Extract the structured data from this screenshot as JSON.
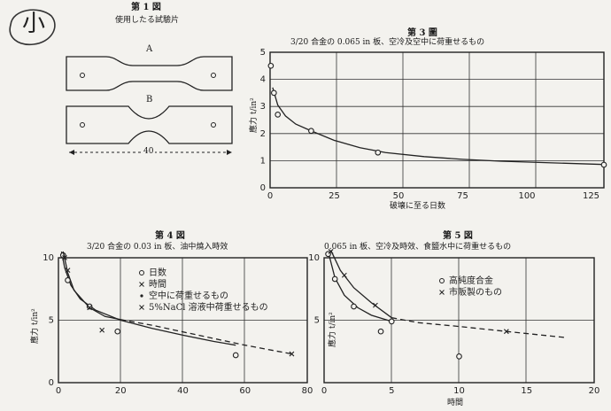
{
  "margin_mark": "小",
  "fig1": {
    "title": "第 1 図",
    "subtitle": "使用したる試驗片",
    "label_a": "A",
    "label_b": "B",
    "dim": "40"
  },
  "chart_data": [
    {
      "id": "fig3",
      "type": "scatter",
      "title": "第 3 圖",
      "subtitle": "3/20 合金の 0.065 in 板、空冷及空中に荷重せるもの",
      "xlabel": "破壊に至る日数",
      "ylabel": "應力 t/in²",
      "xlim": [
        0,
        130
      ],
      "ylim": [
        0,
        5
      ],
      "xticks": [
        "0",
        "25",
        "50",
        "75",
        "100",
        "125"
      ],
      "yticks": [
        "0",
        "1",
        "2",
        "3",
        "4",
        "5"
      ],
      "grid": true,
      "series": [
        {
          "marker": "circle",
          "points": [
            [
              0.3,
              4.5
            ],
            [
              1.5,
              3.5
            ],
            [
              3,
              2.7
            ],
            [
              16,
              2.1
            ],
            [
              42,
              1.3
            ],
            [
              130,
              0.85
            ]
          ],
          "curve": [
            [
              1.0,
              3.7
            ],
            [
              3,
              3.05
            ],
            [
              6,
              2.65
            ],
            [
              10,
              2.35
            ],
            [
              16,
              2.1
            ],
            [
              25,
              1.75
            ],
            [
              35,
              1.48
            ],
            [
              45,
              1.3
            ],
            [
              60,
              1.15
            ],
            [
              75,
              1.05
            ],
            [
              90,
              0.98
            ],
            [
              110,
              0.92
            ],
            [
              130,
              0.86
            ]
          ]
        }
      ]
    },
    {
      "id": "fig4",
      "type": "scatter",
      "title": "第 4 図",
      "subtitle": "3/20 合金の 0.03 in 板、油中燒入時效",
      "ylabel": "應力 t/in²",
      "xlim": [
        0,
        80
      ],
      "ylim": [
        0,
        10
      ],
      "xticks": [
        "0",
        "20",
        "40",
        "60",
        "80"
      ],
      "yticks": [
        "0",
        "5",
        "10"
      ],
      "grid": true,
      "legend": [
        "日数",
        "時間",
        "空中に荷重せるもの",
        "5%NaCl 溶液中荷重せるもの"
      ],
      "series": [
        {
          "name": "空中に荷重せるもの",
          "marker": "circle",
          "points": [
            [
              1.5,
              10.2
            ],
            [
              3,
              8.2
            ],
            [
              10,
              6.1
            ],
            [
              19,
              4.1
            ],
            [
              57,
              2.2
            ]
          ],
          "curve": [
            [
              1,
              10.5
            ],
            [
              2,
              9.2
            ],
            [
              4,
              7.8
            ],
            [
              7,
              6.7
            ],
            [
              12,
              5.8
            ],
            [
              20,
              5.0
            ],
            [
              30,
              4.35
            ],
            [
              40,
              3.8
            ],
            [
              50,
              3.3
            ],
            [
              57,
              3.0
            ]
          ]
        },
        {
          "name": "5%NaCl 溶液中荷重せるもの",
          "marker": "x",
          "points": [
            [
              2,
              10.0
            ],
            [
              3,
              9.0
            ],
            [
              10,
              6.0
            ],
            [
              14,
              4.2
            ],
            [
              75,
              2.3
            ]
          ],
          "curve": [
            [
              1.5,
              10.5
            ],
            [
              3,
              8.8
            ],
            [
              5,
              7.4
            ],
            [
              10,
              6.0
            ],
            [
              15,
              5.3
            ],
            [
              20,
              5.05
            ],
            [
              30,
              4.6
            ],
            [
              45,
              3.8
            ],
            [
              60,
              3.0
            ],
            [
              75,
              2.3
            ]
          ],
          "dashed_from": 20
        }
      ]
    },
    {
      "id": "fig5",
      "type": "scatter",
      "title": "第 5 図",
      "subtitle": "0.065 in 板、空冷及時效、食鹽水中に荷重せるもの",
      "xlabel": "時間",
      "ylabel": "應力 t/in²",
      "xlim": [
        0,
        20
      ],
      "ylim": [
        0,
        10
      ],
      "xticks": [
        "0",
        "5",
        "10",
        "15",
        "20"
      ],
      "yticks": [
        "5",
        "10"
      ],
      "grid": true,
      "legend": [
        "高純度合金",
        "市販製のもの"
      ],
      "series": [
        {
          "name": "高純度合金",
          "marker": "circle",
          "points": [
            [
              0.3,
              10.3
            ],
            [
              0.8,
              8.3
            ],
            [
              2.2,
              6.1
            ],
            [
              4.2,
              4.1
            ],
            [
              5.0,
              4.9
            ],
            [
              10,
              2.1
            ]
          ],
          "curve": [
            [
              0.3,
              10.5
            ],
            [
              0.8,
              8.4
            ],
            [
              1.5,
              7.0
            ],
            [
              2.5,
              6.0
            ],
            [
              3.5,
              5.4
            ],
            [
              5.0,
              4.9
            ]
          ]
        },
        {
          "name": "市販製のもの",
          "marker": "x",
          "points": [
            [
              0.5,
              10.5
            ],
            [
              1.5,
              8.6
            ],
            [
              3.8,
              6.2
            ],
            [
              13.5,
              4.1
            ]
          ],
          "curve": [
            [
              0.5,
              10.6
            ],
            [
              1.2,
              9.0
            ],
            [
              2.2,
              7.6
            ],
            [
              3.5,
              6.4
            ],
            [
              5,
              5.2
            ],
            [
              7,
              4.8
            ],
            [
              10,
              4.5
            ],
            [
              13.5,
              4.1
            ],
            [
              18,
              3.6
            ]
          ],
          "dashed_from": 5
        }
      ]
    }
  ]
}
